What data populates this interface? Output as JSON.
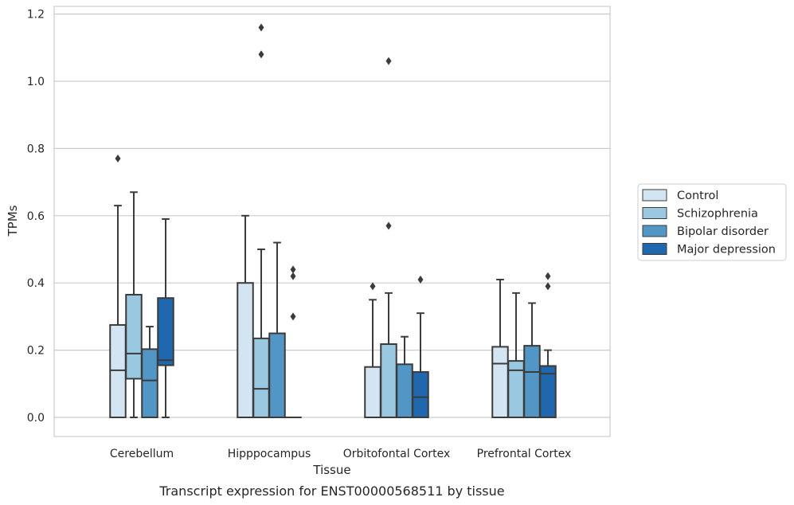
{
  "caption": "Transcript expression for ENST00000568511 by tissue",
  "chart_data": {
    "type": "box",
    "xlabel": "Tissue",
    "ylabel": "TPMs",
    "ylim": [
      -0.055,
      1.22
    ],
    "yticks": [
      0.0,
      0.2,
      0.4,
      0.6,
      0.8,
      1.0,
      1.2
    ],
    "ytick_labels": [
      "0.0",
      "0.2",
      "0.4",
      "0.6",
      "0.8",
      "1.0",
      "1.2"
    ],
    "grid": "horizontal",
    "legend_position": "right",
    "categories": [
      "Cerebellum",
      "Hipppocampus",
      "Orbitofontal Cortex",
      "Prefrontal Cortex"
    ],
    "series": [
      {
        "name": "Control",
        "color": "#d3e4f3",
        "boxes": [
          {
            "whislo": 0.0,
            "q1": 0.0,
            "med": 0.14,
            "q3": 0.275,
            "whishi": 0.63,
            "fliers": [
              0.77
            ]
          },
          {
            "whislo": 0.0,
            "q1": 0.0,
            "med": 0.0,
            "q3": 0.4,
            "whishi": 0.6,
            "fliers": []
          },
          {
            "whislo": 0.0,
            "q1": 0.0,
            "med": 0.0,
            "q3": 0.15,
            "whishi": 0.35,
            "fliers": [
              0.39
            ]
          },
          {
            "whislo": 0.0,
            "q1": 0.0,
            "med": 0.16,
            "q3": 0.21,
            "whishi": 0.41,
            "fliers": []
          }
        ]
      },
      {
        "name": "Schizophrenia",
        "color": "#9ac8e0",
        "boxes": [
          {
            "whislo": 0.0,
            "q1": 0.115,
            "med": 0.19,
            "q3": 0.365,
            "whishi": 0.67,
            "fliers": []
          },
          {
            "whislo": 0.0,
            "q1": 0.0,
            "med": 0.085,
            "q3": 0.235,
            "whishi": 0.5,
            "fliers": [
              1.08,
              1.16
            ]
          },
          {
            "whislo": 0.0,
            "q1": 0.0,
            "med": 0.0,
            "q3": 0.218,
            "whishi": 0.37,
            "fliers": [
              0.57,
              1.06
            ]
          },
          {
            "whislo": 0.0,
            "q1": 0.0,
            "med": 0.14,
            "q3": 0.168,
            "whishi": 0.37,
            "fliers": []
          }
        ]
      },
      {
        "name": "Bipolar disorder",
        "color": "#5296c5",
        "boxes": [
          {
            "whislo": 0.0,
            "q1": 0.0,
            "med": 0.11,
            "q3": 0.203,
            "whishi": 0.27,
            "fliers": []
          },
          {
            "whislo": 0.0,
            "q1": 0.0,
            "med": 0.0,
            "q3": 0.25,
            "whishi": 0.52,
            "fliers": []
          },
          {
            "whislo": 0.0,
            "q1": 0.0,
            "med": 0.0,
            "q3": 0.158,
            "whishi": 0.24,
            "fliers": []
          },
          {
            "whislo": 0.0,
            "q1": 0.0,
            "med": 0.135,
            "q3": 0.213,
            "whishi": 0.34,
            "fliers": []
          }
        ]
      },
      {
        "name": "Major depression",
        "color": "#2068ad",
        "boxes": [
          {
            "whislo": 0.0,
            "q1": 0.155,
            "med": 0.17,
            "q3": 0.355,
            "whishi": 0.59,
            "fliers": []
          },
          {
            "whislo": 0.0,
            "q1": 0.0,
            "med": 0.0,
            "q3": 0.0,
            "whishi": 0.0,
            "fliers": [
              0.3,
              0.42,
              0.44
            ]
          },
          {
            "whislo": 0.0,
            "q1": 0.0,
            "med": 0.06,
            "q3": 0.135,
            "whishi": 0.31,
            "fliers": [
              0.41
            ]
          },
          {
            "whislo": 0.0,
            "q1": 0.0,
            "med": 0.13,
            "q3": 0.153,
            "whishi": 0.2,
            "fliers": [
              0.39,
              0.42
            ]
          }
        ]
      }
    ]
  }
}
